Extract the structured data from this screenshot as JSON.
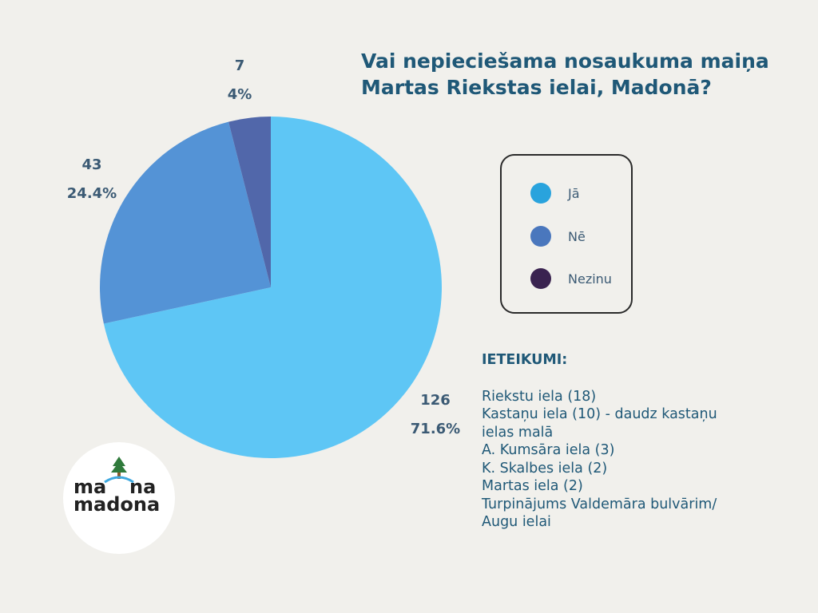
{
  "title_lines": [
    "Vai nepieciešama nosaukuma maiņa",
    "Martas Riekstas ielai, Madonā?"
  ],
  "colors": {
    "background": "#f1f0ec",
    "ja": "#5ec6f5",
    "ne": "#5493d6",
    "nezinu": "#5167aa",
    "legend_ja": "#29a3dd",
    "legend_ne": "#4a77bd",
    "legend_nezinu": "#3a2350",
    "title": "#1f5877"
  },
  "chart_data": {
    "type": "pie",
    "categories": [
      "Jā",
      "Nē",
      "Nezinu"
    ],
    "values": [
      126,
      43,
      7
    ],
    "percent_labels": [
      "71.6%",
      "24.4%",
      "4%"
    ],
    "legend_placement": "right"
  },
  "legend": {
    "items": [
      {
        "label": "Jā"
      },
      {
        "label": "Nē"
      },
      {
        "label": "Nezinu"
      }
    ]
  },
  "suggestions": {
    "heading": "IETEIKUMI:",
    "items": [
      "Riekstu iela (18)",
      "Kastaņu iela (10) - daudz kastaņu",
      "ielas malā",
      "A. Kumsāra iela (3)",
      "K. Skalbes iela (2)",
      "Martas iela (2)",
      "Turpinājums Valdemāra bulvārim/",
      "Augu ielai"
    ]
  },
  "logo": {
    "line1a": "ma",
    "line1b": "na",
    "line2": "madona"
  }
}
